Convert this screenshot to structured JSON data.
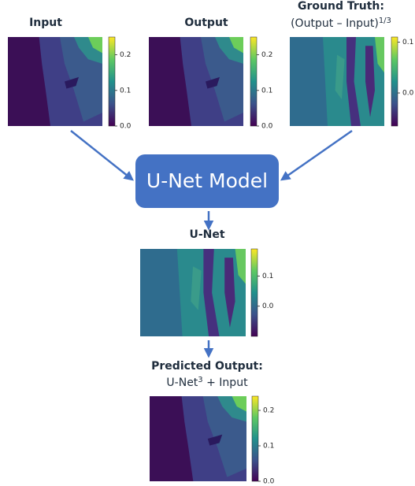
{
  "panels": [
    {
      "title": "Input",
      "colorbar": {
        "clim": [
          0,
          0.25
        ],
        "ticks": [
          {
            "value": 0,
            "label": "0.0"
          },
          0.1,
          0.2
        ]
      }
    },
    {
      "title": "Output",
      "colorbar": {
        "clim": [
          0,
          0.25
        ],
        "ticks": [
          {
            "value": 0,
            "label": "0.0"
          },
          0.1,
          0.2
        ]
      }
    },
    {
      "title": "Ground Truth:",
      "subtitle": {
        "text": "(Output – Input)",
        "superscript": "1/3"
      },
      "colorbar": {
        "clim": [
          -0.065,
          0.11
        ],
        "ticks": [
          {
            "value": 0,
            "label": "0.0"
          },
          0.1
        ]
      }
    },
    {
      "title": "U-Net",
      "colorbar": {
        "clim": [
          -0.1,
          0.19
        ],
        "ticks": [
          {
            "value": 0,
            "label": "0.0"
          },
          0.1
        ]
      }
    },
    {
      "title": "Predicted Output:",
      "subtitle": {
        "text": "U-Net",
        "superscript": "3",
        "suffix": " + Input"
      },
      "colorbar": {
        "clim": [
          0,
          0.24
        ],
        "ticks": [
          {
            "value": 0,
            "label": "0.0"
          },
          0.1,
          0.2
        ]
      }
    }
  ],
  "model": {
    "label": "U-Net Model"
  }
}
